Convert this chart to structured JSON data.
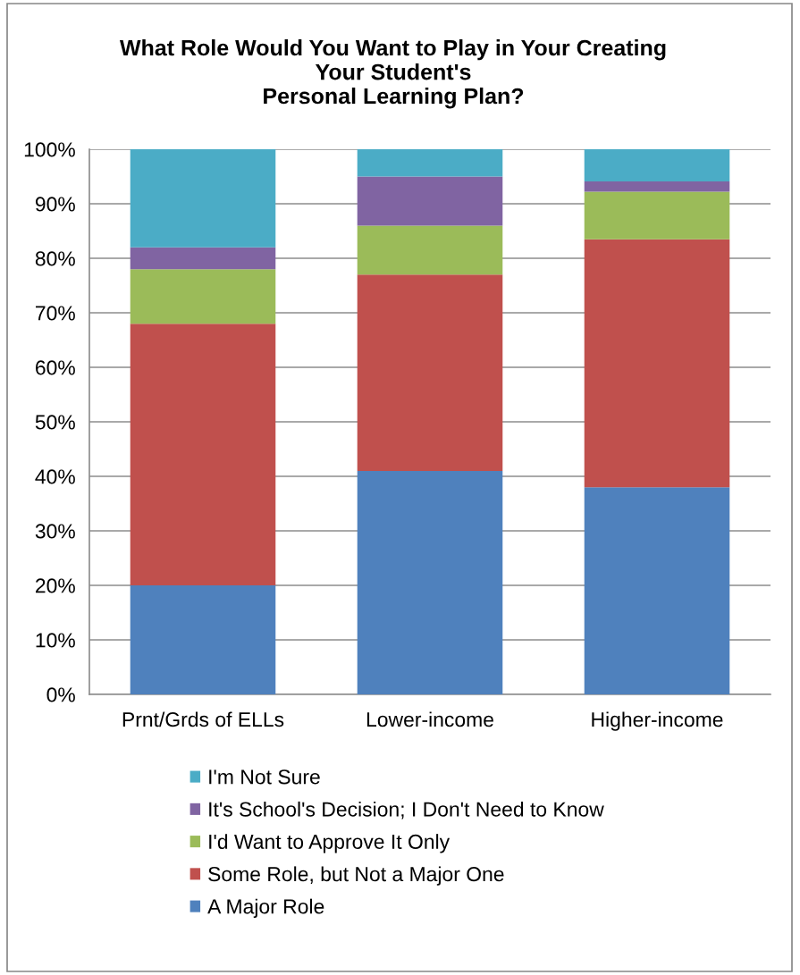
{
  "chart_data": {
    "type": "bar",
    "stacked": true,
    "title": "What Role Would You Want to Play in Your Creating\nYour Student's\nPersonal Learning Plan?",
    "categories": [
      "Prnt/Grds of ELLs",
      "Lower-income",
      "Higher-income"
    ],
    "series": [
      {
        "name": "A Major Role",
        "color": "#4f81bd",
        "values": [
          20,
          41,
          38
        ]
      },
      {
        "name": "Some Role, but Not a Major One",
        "color": "#c0504d",
        "values": [
          48,
          36,
          45.5
        ]
      },
      {
        "name": "I'd Want to Approve It Only",
        "color": "#9bbb59",
        "values": [
          10,
          9,
          8.7
        ]
      },
      {
        "name": "It's School's Decision; I Don't Need to Know",
        "color": "#8064a2",
        "values": [
          4,
          9,
          1.9
        ]
      },
      {
        "name": "I'm Not Sure",
        "color": "#4bacc6",
        "values": [
          18,
          5,
          5.9
        ]
      }
    ],
    "ylim": [
      0,
      100
    ],
    "yticks": [
      {
        "value": 0,
        "label": "0%"
      },
      {
        "value": 10,
        "label": "10%"
      },
      {
        "value": 20,
        "label": "20%"
      },
      {
        "value": 30,
        "label": "30%"
      },
      {
        "value": 40,
        "label": "40%"
      },
      {
        "value": 50,
        "label": "50%"
      },
      {
        "value": 60,
        "label": "60%"
      },
      {
        "value": 70,
        "label": "70%"
      },
      {
        "value": 80,
        "label": "80%"
      },
      {
        "value": 90,
        "label": "90%"
      },
      {
        "value": 100,
        "label": "100%"
      }
    ],
    "grid": "y",
    "legend": "bottom"
  }
}
